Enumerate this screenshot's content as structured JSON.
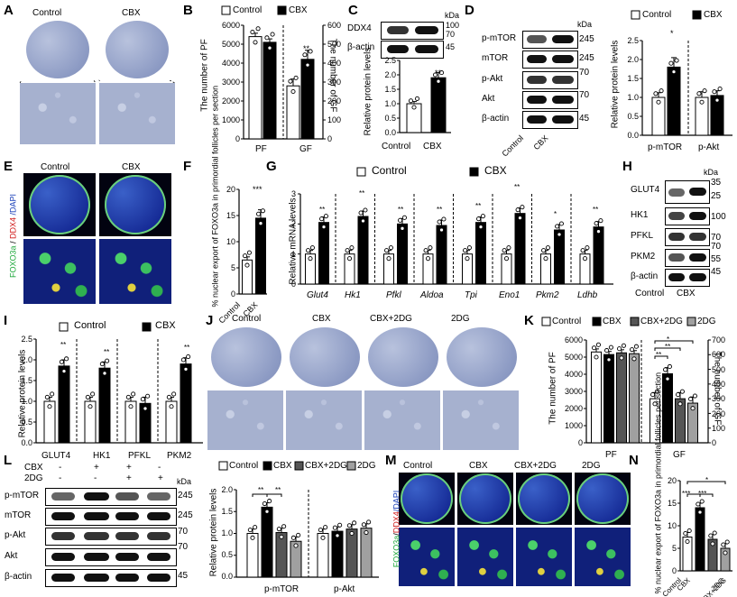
{
  "panels": {
    "a": "A",
    "b": "B",
    "c": "C",
    "d": "D",
    "e": "E",
    "f": "F",
    "g": "G",
    "h": "H",
    "i": "I",
    "j": "J",
    "k": "K",
    "l": "L",
    "m": "M",
    "n": "N"
  },
  "groups": {
    "control": "Control",
    "cbx": "CBX",
    "cbx2dg": "CBX+2DG",
    "dg": "2DG"
  },
  "panel_a": {
    "labels": [
      "Control",
      "CBX"
    ]
  },
  "panel_b": {
    "ylabel_left": "The number of PF",
    "ylabel_right": "The number of GF",
    "left_ticks": [
      "6000",
      "5000",
      "4000",
      "3000",
      "2000",
      "1000",
      "0"
    ],
    "right_ticks": [
      "600",
      "500",
      "400",
      "300",
      "200",
      "100",
      "0"
    ],
    "x": [
      "PF",
      "GF"
    ],
    "sig": "**"
  },
  "panel_c": {
    "blots": [
      "DDX4",
      "β-actin"
    ],
    "kda_label": "kDa",
    "kda": [
      "100",
      "70",
      "45"
    ],
    "ylabel": "Relative protein levels",
    "ticks": [
      "2.5",
      "2.0",
      "1.5",
      "1.0",
      "0.5",
      "0.0"
    ],
    "x": [
      "Control",
      "CBX"
    ],
    "sig": "**"
  },
  "panel_d": {
    "blots": [
      "p-mTOR",
      "mTOR",
      "p-Akt",
      "Akt",
      "β-actin"
    ],
    "kda_label": "kDa",
    "kda": [
      "245",
      "245",
      "70",
      "70",
      "45"
    ],
    "x": [
      "Control",
      "CBX"
    ],
    "ylabel": "Relative protein levels",
    "ticks": [
      "2.5",
      "2.0",
      "1.5",
      "1.0",
      "0.5",
      "0.0"
    ],
    "groups": [
      "p-mTOR",
      "p-Akt"
    ],
    "sig": "*"
  },
  "panel_e": {
    "labels": [
      "Control",
      "CBX"
    ],
    "stain": [
      "FOXO3a",
      " / ",
      "DDX4",
      " /DAPI"
    ]
  },
  "panel_f": {
    "ylabel": "% nuclear export of FOXO3a in primordial follicles per section",
    "ticks": [
      "20",
      "15",
      "10",
      "5",
      "0"
    ],
    "x": [
      "Control",
      "CBX"
    ],
    "sig": "***"
  },
  "panel_g": {
    "ylabel": "Relative mRNA levels",
    "ticks": [
      "3",
      "2",
      "1",
      "0"
    ],
    "genes": [
      "Glut4",
      "Hk1",
      "Pfkl",
      "Aldoa",
      "Tpi",
      "Eno1",
      "Pkm2",
      "Ldhb"
    ],
    "sig": [
      "**",
      "**",
      "**",
      "**",
      "**",
      "**",
      "*",
      "**"
    ]
  },
  "panel_h": {
    "blots": [
      "GLUT4",
      "HK1",
      "PFKL",
      "PKM2",
      "β-actin"
    ],
    "kda_label": "kDa",
    "kda": [
      "35",
      "25",
      "100",
      "70",
      "70",
      "55",
      "45"
    ],
    "x": [
      "Control",
      "CBX"
    ]
  },
  "panel_i": {
    "ylabel": "Relative protein levels",
    "ticks": [
      "2.5",
      "2.0",
      "1.5",
      "1.0",
      "0.5",
      "0.0"
    ],
    "x": [
      "GLUT4",
      "HK1",
      "PFKL",
      "PKM2"
    ],
    "sig": [
      "**",
      "**",
      "",
      "**"
    ]
  },
  "panel_j": {
    "labels": [
      "Control",
      "CBX",
      "CBX+2DG",
      "2DG"
    ]
  },
  "panel_k": {
    "ylabel_left": "The number of PF",
    "ylabel_right": "The number of GF",
    "left_ticks": [
      "6000",
      "5000",
      "4000",
      "3000",
      "2000",
      "1000",
      "0"
    ],
    "right_ticks": [
      "700",
      "600",
      "500",
      "400",
      "300",
      "200",
      "100",
      "0"
    ],
    "x": [
      "PF",
      "GF"
    ],
    "sig": [
      "**",
      "**",
      "*"
    ]
  },
  "panel_l": {
    "rows": [
      "CBX",
      "2DG"
    ],
    "signs": [
      [
        "-",
        "+",
        "+",
        "-"
      ],
      [
        "-",
        "-",
        "+",
        "+"
      ]
    ],
    "kda_label": "kDa",
    "blots": [
      "p-mTOR",
      "mTOR",
      "p-Akt",
      "Akt",
      "β-actin"
    ],
    "kda": [
      "245",
      "245",
      "70",
      "70",
      "45"
    ],
    "ylabel": "Relative protein levels",
    "ticks": [
      "2.0",
      "1.5",
      "1.0",
      "0.5",
      "0.0"
    ],
    "groups": [
      "p-mTOR",
      "p-Akt"
    ],
    "sig": [
      "**",
      "**"
    ]
  },
  "panel_m": {
    "labels": [
      "Control",
      "CBX",
      "CBX+2DG",
      "2DG"
    ],
    "stain": [
      "FOXO3a",
      "/",
      "DDX4",
      "/DAPI"
    ]
  },
  "panel_n": {
    "ylabel": "% nuclear export of FOXO3a in primordial follicles per section",
    "ticks": [
      "20",
      "15",
      "10",
      "5",
      "0"
    ],
    "x": [
      "Control",
      "CBX",
      "CBX+2DG",
      "2DG"
    ],
    "sig": [
      "*",
      "***",
      "***"
    ]
  },
  "colors": {
    "cbx": "#000000",
    "cbx2dg": "#555555",
    "dg": "#a0a0a0",
    "control": "#ffffff",
    "arrow": "#e02020"
  },
  "chart_data": [
    {
      "id": "B",
      "type": "bar",
      "categories": [
        "PF",
        "GF"
      ],
      "series": [
        {
          "name": "Control",
          "values": [
            5400,
            280
          ]
        },
        {
          "name": "CBX",
          "values": [
            5100,
            420
          ]
        }
      ],
      "ylim": [
        0,
        6000
      ],
      "ylim_right": [
        0,
        600
      ]
    },
    {
      "id": "C",
      "type": "bar",
      "categories": [
        "Control",
        "CBX"
      ],
      "values": [
        1.0,
        1.9
      ],
      "ylim": [
        0,
        2.5
      ]
    },
    {
      "id": "D",
      "type": "bar",
      "categories": [
        "p-mTOR",
        "p-Akt"
      ],
      "series": [
        {
          "name": "Control",
          "values": [
            1.0,
            1.0
          ]
        },
        {
          "name": "CBX",
          "values": [
            1.8,
            1.05
          ]
        }
      ],
      "ylim": [
        0,
        2.5
      ]
    },
    {
      "id": "F",
      "type": "bar",
      "categories": [
        "Control",
        "CBX"
      ],
      "values": [
        6.5,
        14.5
      ],
      "ylim": [
        0,
        20
      ]
    },
    {
      "id": "G",
      "type": "bar",
      "categories": [
        "Glut4",
        "Hk1",
        "Pfkl",
        "Aldoa",
        "Tpi",
        "Eno1",
        "Pkm2",
        "Ldhb"
      ],
      "series": [
        {
          "name": "Control",
          "values": [
            1.0,
            1.0,
            1.0,
            1.0,
            1.0,
            1.0,
            1.0,
            1.0
          ]
        },
        {
          "name": "CBX",
          "values": [
            2.05,
            2.25,
            2.0,
            1.95,
            2.05,
            2.35,
            1.8,
            1.9
          ]
        }
      ],
      "ylim": [
        0,
        3
      ]
    },
    {
      "id": "I",
      "type": "bar",
      "categories": [
        "GLUT4",
        "HK1",
        "PFKL",
        "PKM2"
      ],
      "series": [
        {
          "name": "Control",
          "values": [
            1.0,
            1.0,
            1.0,
            1.0
          ]
        },
        {
          "name": "CBX",
          "values": [
            1.85,
            1.8,
            0.95,
            1.9
          ]
        }
      ],
      "ylim": [
        0,
        2.5
      ]
    },
    {
      "id": "K",
      "type": "bar",
      "categories": [
        "PF",
        "GF"
      ],
      "series": [
        {
          "name": "Control",
          "values": [
            5300,
            300
          ]
        },
        {
          "name": "CBX",
          "values": [
            5150,
            470
          ]
        },
        {
          "name": "CBX+2DG",
          "values": [
            5250,
            300
          ]
        },
        {
          "name": "2DG",
          "values": [
            5200,
            270
          ]
        }
      ],
      "ylim": [
        0,
        6000
      ],
      "ylim_right": [
        0,
        700
      ]
    },
    {
      "id": "L",
      "type": "bar",
      "categories": [
        "p-mTOR",
        "p-Akt"
      ],
      "series": [
        {
          "name": "Control",
          "values": [
            1.0,
            1.0
          ]
        },
        {
          "name": "CBX",
          "values": [
            1.6,
            1.05
          ]
        },
        {
          "name": "CBX+2DG",
          "values": [
            1.02,
            1.1
          ]
        },
        {
          "name": "2DG",
          "values": [
            0.82,
            1.12
          ]
        }
      ],
      "ylim": [
        0,
        2.0
      ]
    },
    {
      "id": "N",
      "type": "bar",
      "categories": [
        "Control",
        "CBX",
        "CBX+2DG",
        "2DG"
      ],
      "values": [
        7.5,
        14.0,
        7.0,
        5.0
      ],
      "ylim": [
        0,
        20
      ]
    }
  ]
}
